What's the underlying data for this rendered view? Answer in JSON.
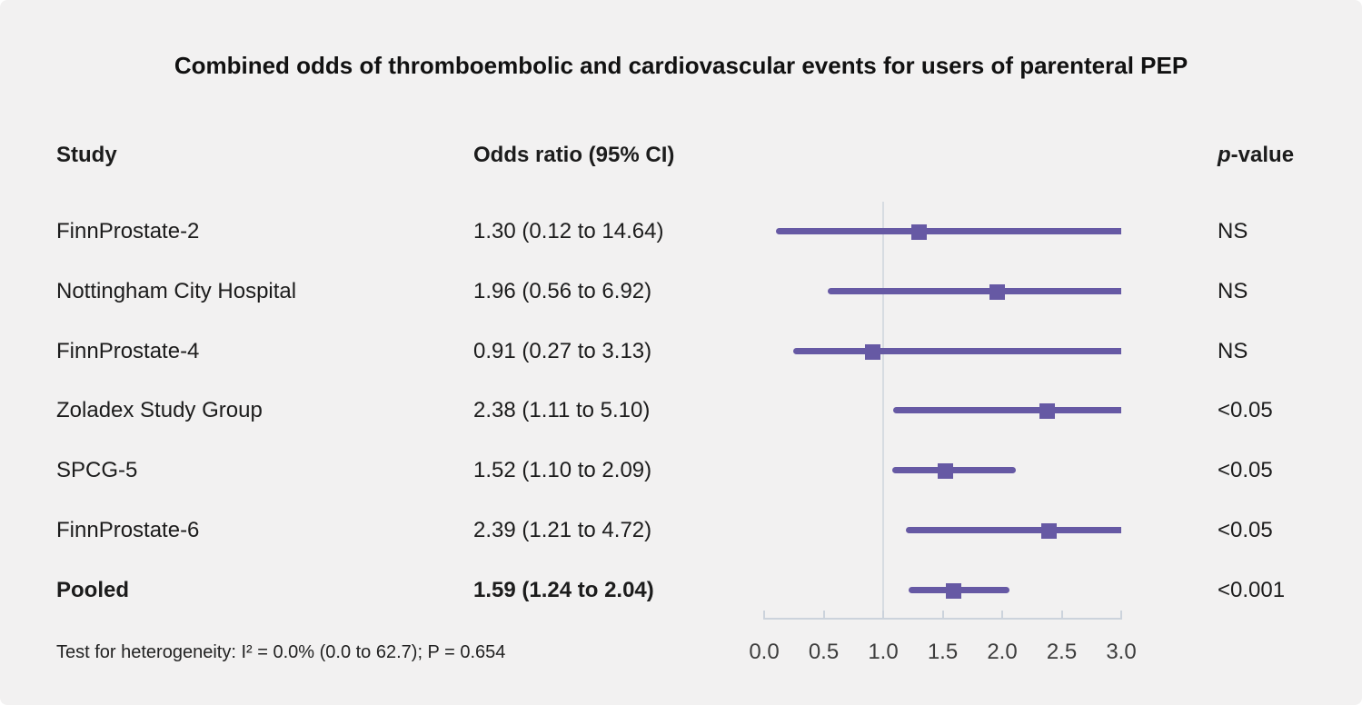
{
  "title": "Combined odds of thromboembolic and cardiovascular events for users of parenteral PEP",
  "columns": {
    "study": "Study",
    "odds_ratio": "Odds ratio (95% CI)",
    "p_value_italic": "p",
    "p_value_rest": "-value"
  },
  "footnote": "Test for heterogeneity: I² = 0.0% (0.0 to 62.7); P = 0.654",
  "colors": {
    "marker_purple": "#6659a4",
    "reference_line": "#d7dce2",
    "axis_line": "#ccd3dc",
    "background": "#f2f1f1",
    "text": "#1c1c1c"
  },
  "chart_data": {
    "type": "forest",
    "title": "Combined odds of thromboembolic and cardiovascular events for users of parenteral PEP",
    "x_axis": {
      "ticks": [
        0.0,
        0.5,
        1.0,
        1.5,
        2.0,
        2.5,
        3.0
      ],
      "tick_labels": [
        "0.0",
        "0.5",
        "1.0",
        "1.5",
        "2.0",
        "2.5",
        "3.0"
      ],
      "xlim": [
        0.0,
        3.0
      ],
      "reference_value": 1.0
    },
    "studies": [
      {
        "study": "FinnProstate-2",
        "or_text": "1.30 (0.12 to 14.64)",
        "or": 1.3,
        "ci_lower": 0.12,
        "ci_upper": 14.64,
        "p_value": "NS",
        "bold": false
      },
      {
        "study": "Nottingham City Hospital",
        "or_text": "1.96 (0.56 to 6.92)",
        "or": 1.96,
        "ci_lower": 0.56,
        "ci_upper": 6.92,
        "p_value": "NS",
        "bold": false
      },
      {
        "study": "FinnProstate-4",
        "or_text": "0.91 (0.27 to 3.13)",
        "or": 0.91,
        "ci_lower": 0.27,
        "ci_upper": 3.13,
        "p_value": "NS",
        "bold": false
      },
      {
        "study": "Zoladex Study Group",
        "or_text": "2.38 (1.11 to 5.10)",
        "or": 2.38,
        "ci_lower": 1.11,
        "ci_upper": 5.1,
        "p_value": "<0.05",
        "bold": false
      },
      {
        "study": "SPCG-5",
        "or_text": "1.52 (1.10 to 2.09)",
        "or": 1.52,
        "ci_lower": 1.1,
        "ci_upper": 2.09,
        "p_value": "<0.05",
        "bold": false
      },
      {
        "study": "FinnProstate-6",
        "or_text": "2.39 (1.21 to 4.72)",
        "or": 2.39,
        "ci_lower": 1.21,
        "ci_upper": 4.72,
        "p_value": "<0.05",
        "bold": false
      },
      {
        "study": "Pooled",
        "or_text": "1.59 (1.24 to 2.04)",
        "or": 1.59,
        "ci_lower": 1.24,
        "ci_upper": 2.04,
        "p_value": "<0.001",
        "bold": true
      }
    ]
  }
}
